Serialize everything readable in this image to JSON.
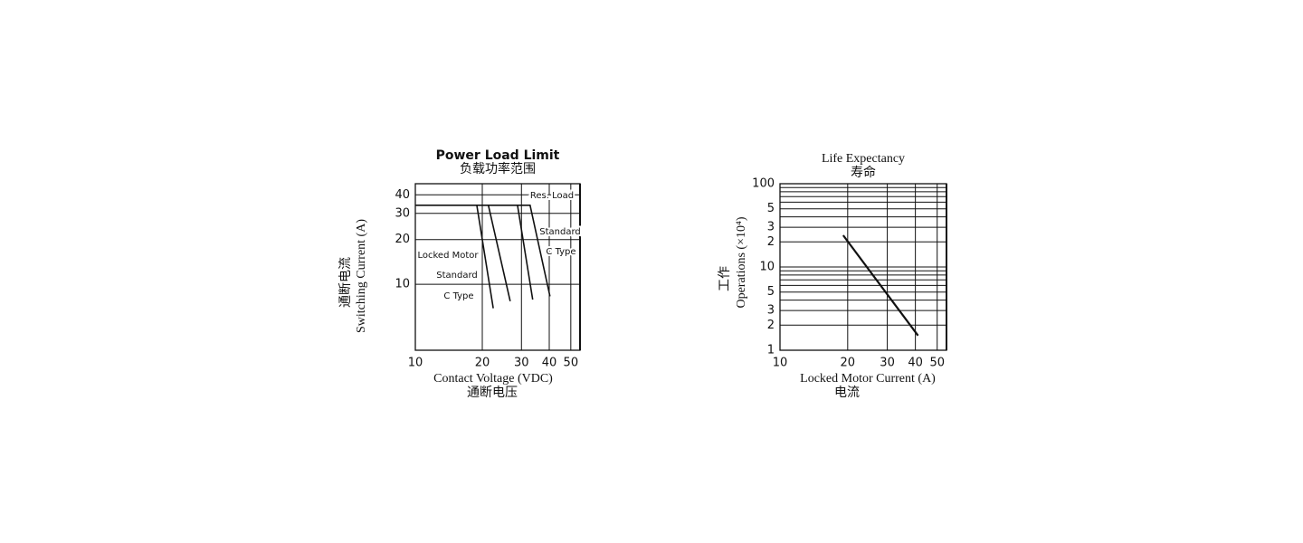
{
  "chart_data": [
    {
      "type": "line",
      "title": "Power Load Limit",
      "subtitle": "负载功率范围",
      "xlabel": "Contact Voltage   (VDC)",
      "xlabel_cn": "通断电压",
      "ylabel": "Switching Current (A)",
      "ylabel_cn": "通断电流",
      "xscale": "log",
      "yscale": "log",
      "grid": true,
      "xlim": [
        10,
        55
      ],
      "ylim": [
        3.6,
        47.5
      ],
      "xticks": [
        10,
        20,
        30,
        40,
        50
      ],
      "yticks": [
        10,
        20,
        30,
        40
      ],
      "series": [
        {
          "color": "#111111",
          "x": [
            10,
            32.8,
            40.3
          ],
          "values": [
            34,
            34,
            8.3
          ]
        },
        {
          "color": "#111111",
          "x": [
            18.9,
            22.4
          ],
          "values": [
            34,
            6.9
          ]
        },
        {
          "color": "#111111",
          "x": [
            21.3,
            26.7
          ],
          "values": [
            34,
            7.7
          ]
        },
        {
          "color": "#111111",
          "x": [
            28.8,
            33.7
          ],
          "values": [
            34,
            7.9
          ]
        }
      ],
      "annotations": [
        "Res. Load",
        "Standard",
        "C Type",
        "Locked Motor",
        "Standard",
        "C Type"
      ]
    },
    {
      "type": "line",
      "title": "Life Expectancy",
      "subtitle": "寿命",
      "xlabel": "Locked Motor Current (A)",
      "xlabel_cn": "电流",
      "ylabel": "Operations (×10⁴)",
      "ylabel_cn": "工作",
      "xscale": "log",
      "yscale": "log",
      "grid": true,
      "xlim": [
        10,
        55
      ],
      "ylim": [
        1,
        100
      ],
      "xticks": [
        10,
        20,
        30,
        40,
        50
      ],
      "yticks": [
        1,
        {
          "value": 2,
          "label": "2"
        },
        3,
        5,
        10,
        {
          "value": 20,
          "label": "2"
        },
        {
          "value": 30,
          "label": "3"
        },
        {
          "value": 50,
          "label": "5"
        },
        100
      ],
      "minor_yticks": [
        4,
        6,
        7,
        8,
        9,
        40,
        60,
        70,
        80,
        90
      ],
      "series": [
        {
          "color": "#111111",
          "x": [
            19.1,
            41.1
          ],
          "values": [
            24,
            1.5
          ]
        }
      ]
    }
  ]
}
